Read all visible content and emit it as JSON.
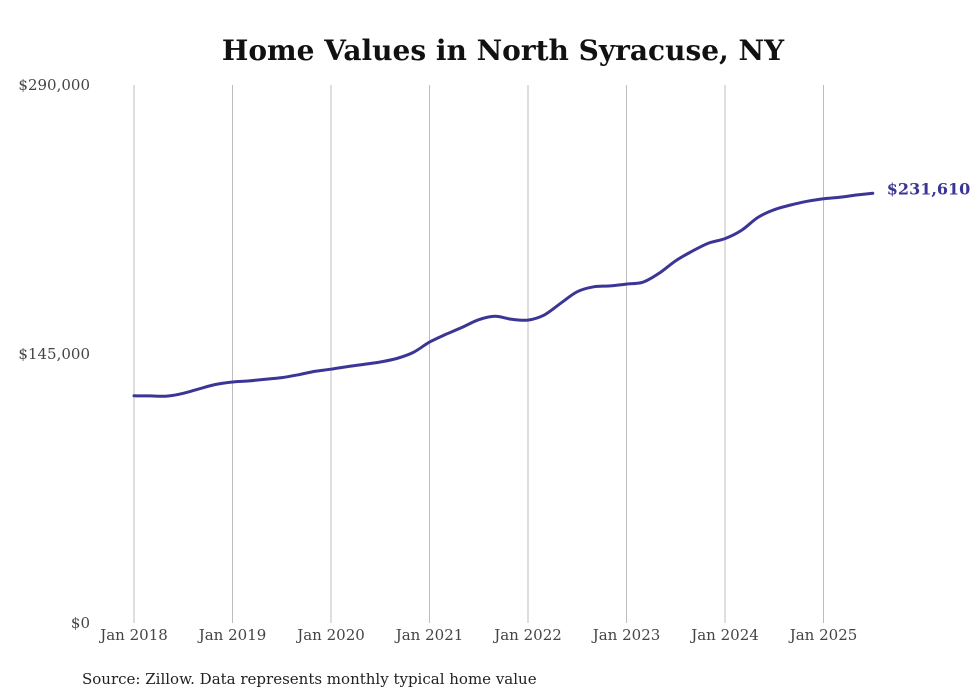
{
  "chart_data": {
    "type": "line",
    "title": "Home Values in North Syracuse, NY",
    "source": "Source: Zillow. Data represents monthly typical home value",
    "ylim": [
      0,
      290000
    ],
    "yticks": [
      {
        "value": 0,
        "label": "$0"
      },
      {
        "value": 145000,
        "label": "$145,000"
      },
      {
        "value": 290000,
        "label": "$290,000"
      }
    ],
    "xticks": [
      {
        "value": "2018-01",
        "label": "Jan 2018"
      },
      {
        "value": "2019-01",
        "label": "Jan 2019"
      },
      {
        "value": "2020-01",
        "label": "Jan 2020"
      },
      {
        "value": "2021-01",
        "label": "Jan 2021"
      },
      {
        "value": "2022-01",
        "label": "Jan 2022"
      },
      {
        "value": "2023-01",
        "label": "Jan 2023"
      },
      {
        "value": "2024-01",
        "label": "Jan 2024"
      },
      {
        "value": "2025-01",
        "label": "Jan 2025"
      }
    ],
    "xgrid": true,
    "ygrid": false,
    "line_color": "#3b3595",
    "end_label": "$231,610",
    "series": [
      {
        "x": [
          "2018-01",
          "2018-03",
          "2018-05",
          "2018-07",
          "2018-09",
          "2018-11",
          "2019-01",
          "2019-03",
          "2019-05",
          "2019-07",
          "2019-09",
          "2019-11",
          "2020-01",
          "2020-03",
          "2020-05",
          "2020-07",
          "2020-09",
          "2020-11",
          "2021-01",
          "2021-03",
          "2021-05",
          "2021-07",
          "2021-09",
          "2021-11",
          "2022-01",
          "2022-03",
          "2022-05",
          "2022-07",
          "2022-09",
          "2022-11",
          "2023-01",
          "2023-03",
          "2023-05",
          "2023-07",
          "2023-09",
          "2023-11",
          "2024-01",
          "2024-03",
          "2024-05",
          "2024-07",
          "2024-09",
          "2024-11",
          "2025-01",
          "2025-03",
          "2025-05",
          "2025-07"
        ],
        "y": [
          122500,
          122400,
          122300,
          123800,
          126300,
          128600,
          129900,
          130500,
          131400,
          132300,
          133800,
          135600,
          136800,
          138200,
          139400,
          140700,
          142600,
          145800,
          151400,
          155600,
          159400,
          163500,
          165300,
          163700,
          163300,
          166100,
          172400,
          178600,
          181200,
          181700,
          182700,
          183700,
          188600,
          195300,
          200400,
          204800,
          207200,
          211600,
          218600,
          222800,
          225300,
          227300,
          228700,
          229500,
          230700,
          231610
        ]
      }
    ]
  }
}
